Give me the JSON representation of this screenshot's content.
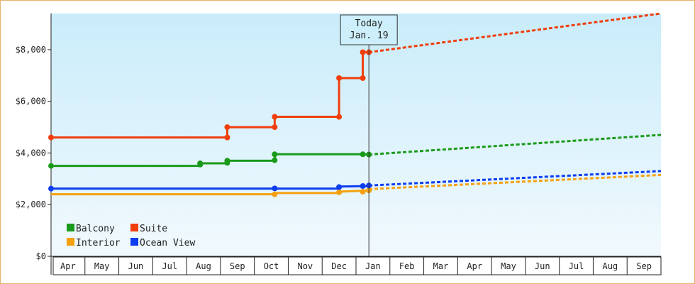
{
  "chart_data": {
    "type": "line",
    "title": "",
    "xlabel": "",
    "ylabel": "",
    "ylim": [
      0,
      9400
    ],
    "y_ticks": [
      0,
      2000,
      4000,
      6000,
      8000
    ],
    "y_tick_labels": [
      "$0",
      "$2,000",
      "$4,000",
      "$6,000",
      "$8,000"
    ],
    "x_categories": [
      "Apr",
      "May",
      "Jun",
      "Jul",
      "Aug",
      "Sep",
      "Oct",
      "Nov",
      "Dec",
      "Jan",
      "Feb",
      "Mar",
      "Apr",
      "May",
      "Jun",
      "Jul",
      "Aug",
      "Sep"
    ],
    "grid": false,
    "legend_position": "bottom-left",
    "today_marker": {
      "line1": "Today",
      "line2": "Jan. 19",
      "x": 9.38
    },
    "series": [
      {
        "name": "Balcony",
        "color": "#1a9a1a",
        "history": [
          [
            0,
            3500
          ],
          [
            4.4,
            3500
          ],
          [
            4.4,
            3600
          ],
          [
            5.2,
            3600
          ],
          [
            5.2,
            3700
          ],
          [
            6.6,
            3700
          ],
          [
            6.6,
            3950
          ],
          [
            9.2,
            3950
          ],
          [
            9.2,
            3940
          ],
          [
            9.38,
            3940
          ]
        ],
        "markers": [
          [
            0,
            3500
          ],
          [
            4.4,
            3550
          ],
          [
            4.4,
            3600
          ],
          [
            5.2,
            3620
          ],
          [
            5.2,
            3700
          ],
          [
            6.6,
            3720
          ],
          [
            6.6,
            3950
          ],
          [
            9.2,
            3950
          ],
          [
            9.38,
            3940
          ]
        ],
        "forecast": [
          [
            9.38,
            3940
          ],
          [
            18,
            4700
          ]
        ]
      },
      {
        "name": "Suite",
        "color": "#f03e0c",
        "history": [
          [
            0,
            4600
          ],
          [
            5.2,
            4600
          ],
          [
            5.2,
            5000
          ],
          [
            6.6,
            5000
          ],
          [
            6.6,
            5400
          ],
          [
            8.5,
            5400
          ],
          [
            8.5,
            6900
          ],
          [
            9.2,
            6900
          ],
          [
            9.2,
            7900
          ],
          [
            9.38,
            7900
          ]
        ],
        "markers": [
          [
            0,
            4600
          ],
          [
            5.2,
            4600
          ],
          [
            5.2,
            5000
          ],
          [
            6.6,
            5000
          ],
          [
            6.6,
            5400
          ],
          [
            8.5,
            5400
          ],
          [
            8.5,
            6900
          ],
          [
            9.2,
            6900
          ],
          [
            9.2,
            7900
          ],
          [
            9.38,
            7900
          ]
        ],
        "forecast": [
          [
            9.38,
            7900
          ],
          [
            18,
            9400
          ]
        ]
      },
      {
        "name": "Interior",
        "color": "#f5a10f",
        "history": [
          [
            0,
            2400
          ],
          [
            6.6,
            2400
          ],
          [
            6.6,
            2450
          ],
          [
            8.5,
            2450
          ],
          [
            8.5,
            2500
          ],
          [
            9.38,
            2550
          ]
        ],
        "markers": [
          [
            6.6,
            2400
          ],
          [
            8.5,
            2480
          ],
          [
            9.2,
            2500
          ],
          [
            9.38,
            2550
          ]
        ],
        "forecast": [
          [
            9.38,
            2600
          ],
          [
            18,
            3150
          ]
        ]
      },
      {
        "name": "Ocean View",
        "color": "#0c3df0",
        "history": [
          [
            0,
            2620
          ],
          [
            8.5,
            2620
          ],
          [
            8.5,
            2700
          ],
          [
            9.38,
            2720
          ]
        ],
        "markers": [
          [
            0,
            2620
          ],
          [
            6.6,
            2630
          ],
          [
            8.5,
            2680
          ],
          [
            9.2,
            2720
          ],
          [
            9.38,
            2740
          ]
        ],
        "forecast": [
          [
            9.38,
            2740
          ],
          [
            18,
            3300
          ]
        ]
      }
    ],
    "legend": [
      {
        "name": "Balcony",
        "color": "#1a9a1a"
      },
      {
        "name": "Suite",
        "color": "#f03e0c"
      },
      {
        "name": "Interior",
        "color": "#f5a10f"
      },
      {
        "name": "Ocean View",
        "color": "#0c3df0"
      }
    ]
  }
}
